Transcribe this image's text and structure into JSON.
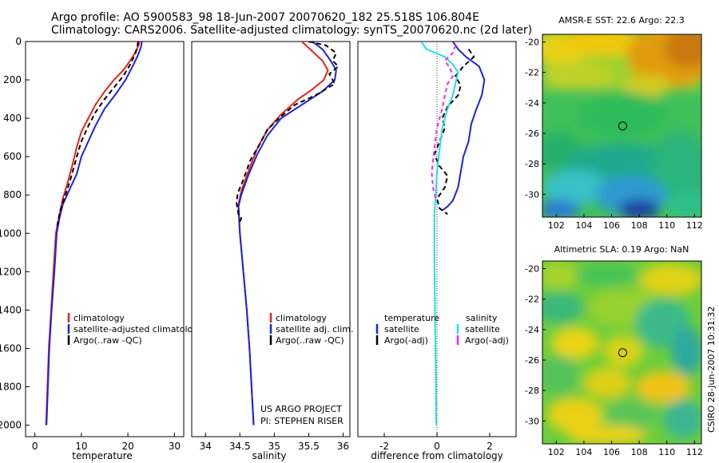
{
  "header": {
    "line1": "Argo profile: AO 5900583_98 18-Jun-2007 20070620_182 25.518S 106.804E",
    "line2": "Climatology: CARS2006. Satellite-adjusted climatology: synTS_20070620.nc (2d later)"
  },
  "side_label": "CSIRO 28-Jun-2007 10:31:32",
  "colors": {
    "climatology": "#e8231a",
    "satellite": "#1d24d8",
    "argo": "#000000",
    "sal_satellite": "#22e0e6",
    "sal_argo": "#ff22ff"
  },
  "chart_data": [
    {
      "id": "temperature",
      "type": "line",
      "xlabel": "temperature",
      "ylabel": "",
      "xlim": [
        -2,
        32
      ],
      "ylim": [
        2060,
        0
      ],
      "y_reversed": true,
      "xticks": [
        "0",
        "10",
        "20",
        "30"
      ],
      "xtick_values": [
        0,
        10,
        20,
        30
      ],
      "yticks": [
        "0",
        "200",
        "400",
        "600",
        "800",
        "1000",
        "1200",
        "1400",
        "1600",
        "1800",
        "2000"
      ],
      "ytick_values": [
        0,
        200,
        400,
        600,
        800,
        1000,
        1200,
        1400,
        1600,
        1800,
        2000
      ],
      "legend": [
        "climatology",
        "satellite-adjusted climatology",
        "Argo(..raw -QC)"
      ],
      "series": [
        {
          "name": "climatology",
          "color": "#e8231a",
          "dash": "",
          "points": [
            [
              22.5,
              0
            ],
            [
              22.3,
              20
            ],
            [
              21.5,
              60
            ],
            [
              20.5,
              100
            ],
            [
              19,
              150
            ],
            [
              17,
              200
            ],
            [
              15,
              260
            ],
            [
              13,
              330
            ],
            [
              11.5,
              400
            ],
            [
              10,
              470
            ],
            [
              9,
              550
            ],
            [
              8,
              650
            ],
            [
              7,
              740
            ],
            [
              6,
              820
            ],
            [
              5.3,
              900
            ],
            [
              4.5,
              1000
            ],
            [
              4,
              1200
            ],
            [
              3.5,
              1400
            ],
            [
              3,
              1600
            ],
            [
              2.7,
              1800
            ],
            [
              2.4,
              2000
            ]
          ]
        },
        {
          "name": "satellite-adjusted climatology",
          "color": "#1d24d8",
          "dash": "",
          "points": [
            [
              23,
              0
            ],
            [
              22.8,
              30
            ],
            [
              22,
              80
            ],
            [
              21,
              130
            ],
            [
              19.5,
              200
            ],
            [
              17.5,
              270
            ],
            [
              15,
              350
            ],
            [
              13,
              440
            ],
            [
              11.5,
              520
            ],
            [
              10,
              600
            ],
            [
              9,
              690
            ],
            [
              7.5,
              770
            ],
            [
              6,
              850
            ],
            [
              5.3,
              920
            ],
            [
              4.7,
              1000
            ],
            [
              4.2,
              1200
            ],
            [
              3.6,
              1400
            ],
            [
              3.1,
              1600
            ],
            [
              2.8,
              1800
            ],
            [
              2.5,
              2000
            ]
          ]
        },
        {
          "name": "Argo(..raw -QC)",
          "color": "#000000",
          "dash": "6 4",
          "points": [
            [
              22.2,
              0
            ],
            [
              22,
              30
            ],
            [
              21.5,
              70
            ],
            [
              20.5,
              120
            ],
            [
              19,
              180
            ],
            [
              17,
              240
            ],
            [
              15,
              300
            ],
            [
              13,
              370
            ],
            [
              11.5,
              440
            ],
            [
              10,
              520
            ],
            [
              9,
              600
            ],
            [
              8,
              690
            ],
            [
              7,
              770
            ],
            [
              6,
              840
            ],
            [
              5.3,
              900
            ],
            [
              4.8,
              960
            ]
          ]
        }
      ]
    },
    {
      "id": "salinity",
      "type": "line",
      "xlabel": "salinity",
      "ylabel": "",
      "xlim": [
        33.8,
        36.1
      ],
      "ylim": [
        2060,
        0
      ],
      "y_reversed": true,
      "xticks": [
        "34",
        "34.5",
        "35",
        "35.5",
        "36"
      ],
      "xtick_values": [
        34,
        34.5,
        35,
        35.5,
        36
      ],
      "legend": [
        "climatology",
        "satellite adj. clim.",
        "Argo(..raw -QC)"
      ],
      "series": [
        {
          "name": "climatology",
          "color": "#e8231a",
          "dash": "",
          "points": [
            [
              35.4,
              0
            ],
            [
              35.55,
              50
            ],
            [
              35.7,
              100
            ],
            [
              35.78,
              150
            ],
            [
              35.72,
              200
            ],
            [
              35.55,
              250
            ],
            [
              35.35,
              300
            ],
            [
              35.1,
              380
            ],
            [
              34.9,
              460
            ],
            [
              34.75,
              560
            ],
            [
              34.62,
              680
            ],
            [
              34.52,
              780
            ],
            [
              34.48,
              850
            ],
            [
              34.5,
              1000
            ],
            [
              34.55,
              1200
            ],
            [
              34.6,
              1400
            ],
            [
              34.64,
              1600
            ],
            [
              34.67,
              1800
            ],
            [
              34.7,
              2000
            ]
          ]
        },
        {
          "name": "satellite adj. clim.",
          "color": "#1d24d8",
          "dash": "",
          "points": [
            [
              35.55,
              0
            ],
            [
              35.7,
              40
            ],
            [
              35.82,
              100
            ],
            [
              35.9,
              150
            ],
            [
              35.88,
              200
            ],
            [
              35.7,
              260
            ],
            [
              35.4,
              330
            ],
            [
              35.1,
              400
            ],
            [
              34.9,
              490
            ],
            [
              34.75,
              590
            ],
            [
              34.62,
              700
            ],
            [
              34.52,
              800
            ],
            [
              34.48,
              860
            ],
            [
              34.5,
              1000
            ],
            [
              34.55,
              1200
            ],
            [
              34.6,
              1400
            ],
            [
              34.64,
              1600
            ],
            [
              34.67,
              1800
            ],
            [
              34.7,
              2000
            ]
          ]
        },
        {
          "name": "Argo(..raw -QC)",
          "color": "#000000",
          "dash": "6 4",
          "points": [
            [
              35.5,
              0
            ],
            [
              35.75,
              20
            ],
            [
              35.9,
              60
            ],
            [
              35.85,
              100
            ],
            [
              35.93,
              130
            ],
            [
              35.8,
              170
            ],
            [
              35.88,
              220
            ],
            [
              35.6,
              280
            ],
            [
              35.3,
              330
            ],
            [
              35.1,
              390
            ],
            [
              34.9,
              460
            ],
            [
              34.78,
              540
            ],
            [
              34.65,
              620
            ],
            [
              34.55,
              720
            ],
            [
              34.47,
              790
            ],
            [
              34.45,
              840
            ],
            [
              34.48,
              900
            ],
            [
              34.52,
              920
            ],
            [
              34.5,
              940
            ]
          ]
        }
      ]
    },
    {
      "id": "difference",
      "type": "line",
      "xlabel": "difference from climatology",
      "ylabel": "",
      "xlim": [
        -3,
        3
      ],
      "ylim": [
        2060,
        0
      ],
      "y_reversed": true,
      "xticks": [
        "-2",
        "0",
        "2"
      ],
      "xtick_values": [
        -2,
        0,
        2
      ],
      "legend_left_title": "temperature",
      "legend_right_title": "salinity",
      "legend": [
        "satellite",
        "Argo(-adj)",
        "satellite",
        "Argo(-adj)"
      ],
      "series": [
        {
          "name": "satellite",
          "color": "#1d24d8",
          "dash": "",
          "points": [
            [
              0.6,
              0
            ],
            [
              0.8,
              40
            ],
            [
              1.1,
              80
            ],
            [
              1.6,
              130
            ],
            [
              1.8,
              200
            ],
            [
              1.7,
              280
            ],
            [
              1.5,
              350
            ],
            [
              1.3,
              430
            ],
            [
              1.2,
              520
            ],
            [
              1.0,
              600
            ],
            [
              0.9,
              680
            ],
            [
              0.8,
              760
            ],
            [
              0.6,
              830
            ],
            [
              0.4,
              860
            ],
            [
              0.2,
              880
            ]
          ]
        },
        {
          "name": "Argo(-adj)",
          "color": "#000000",
          "dash": "6 4",
          "points": [
            [
              1.2,
              40
            ],
            [
              1.4,
              80
            ],
            [
              1.0,
              130
            ],
            [
              0.7,
              180
            ],
            [
              0.9,
              230
            ],
            [
              0.8,
              280
            ],
            [
              0.4,
              340
            ],
            [
              0.2,
              400
            ],
            [
              0.3,
              450
            ],
            [
              0.1,
              520
            ],
            [
              -0.1,
              590
            ],
            [
              0.1,
              650
            ],
            [
              0.4,
              700
            ],
            [
              0.3,
              760
            ],
            [
              0.0,
              820
            ],
            [
              0.1,
              870
            ],
            [
              0.4,
              900
            ]
          ]
        },
        {
          "name": "satellite",
          "color": "#22e0e6",
          "dash": "",
          "points": [
            [
              -0.6,
              0
            ],
            [
              -0.4,
              40
            ],
            [
              0.3,
              80
            ],
            [
              0.6,
              120
            ],
            [
              0.8,
              160
            ],
            [
              0.7,
              220
            ],
            [
              0.6,
              280
            ],
            [
              0.4,
              350
            ],
            [
              0.2,
              450
            ],
            [
              0.1,
              560
            ],
            [
              0.0,
              680
            ],
            [
              -0.05,
              800
            ],
            [
              -0.1,
              900
            ],
            [
              -0.1,
              1100
            ],
            [
              -0.08,
              1400
            ],
            [
              -0.05,
              1700
            ],
            [
              -0.03,
              2000
            ]
          ]
        },
        {
          "name": "Argo(-adj)",
          "color": "#ff22ff",
          "dash": "5 4",
          "points": [
            [
              0.7,
              20
            ],
            [
              0.6,
              60
            ],
            [
              0.3,
              100
            ],
            [
              0.5,
              140
            ],
            [
              0.6,
              180
            ],
            [
              0.4,
              220
            ],
            [
              0.3,
              280
            ],
            [
              0.2,
              350
            ],
            [
              0.0,
              450
            ],
            [
              -0.1,
              560
            ],
            [
              -0.2,
              680
            ],
            [
              -0.15,
              760
            ],
            [
              -0.05,
              820
            ]
          ]
        }
      ]
    }
  ],
  "maps": [
    {
      "id": "sst",
      "title": "AMSR-E SST: 22.6 Argo: 22.3",
      "xticks": [
        "102",
        "104",
        "106",
        "108",
        "110",
        "112"
      ],
      "xtick_values": [
        102,
        104,
        106,
        108,
        110,
        112
      ],
      "yticks": [
        "-20",
        "-22",
        "-24",
        "-26",
        "-28",
        "-30"
      ],
      "ytick_values": [
        -20,
        -22,
        -24,
        -26,
        -28,
        -30
      ],
      "xlim": [
        101,
        112.5
      ],
      "ylim": [
        -31.5,
        -19.5
      ],
      "float_lon": 106.804,
      "float_lat": -25.518
    },
    {
      "id": "sla",
      "title": "Altimetric SLA: 0.19 Argo: NaN",
      "xticks": [
        "102",
        "104",
        "106",
        "108",
        "110",
        "112"
      ],
      "xtick_values": [
        102,
        104,
        106,
        108,
        110,
        112
      ],
      "yticks": [
        "-20",
        "-22",
        "-24",
        "-26",
        "-28",
        "-30"
      ],
      "ytick_values": [
        -20,
        -22,
        -24,
        -26,
        -28,
        -30
      ],
      "xlim": [
        101,
        112.5
      ],
      "ylim": [
        -31.5,
        -19.5
      ],
      "float_lon": 106.804,
      "float_lat": -25.518
    }
  ],
  "project_note": {
    "line1": "US ARGO PROJECT",
    "line2": "PI: STEPHEN RISER"
  }
}
